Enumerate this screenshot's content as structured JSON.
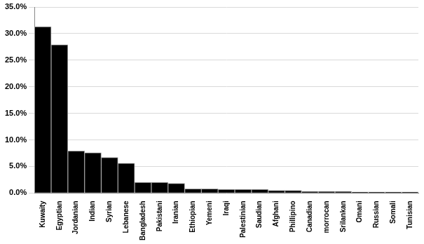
{
  "chart_data": {
    "type": "bar",
    "categories": [
      "Kuwaity",
      "Egyptian",
      "Jordanian",
      "Indian",
      "Syrian",
      "Lebanese",
      "Bangladesh",
      "Pakistani",
      "Iranian",
      "Ethiopian",
      "Yemeni",
      "Iraqi",
      "Palestinian",
      "Saudian",
      "Afghani",
      "Phillipino",
      "Canadian",
      "morrocan",
      "Srilankan",
      "Omani",
      "Russian",
      "Somali",
      "Tunisian"
    ],
    "values": [
      31.3,
      27.9,
      7.9,
      7.6,
      6.7,
      5.6,
      2.0,
      2.0,
      1.8,
      0.8,
      0.8,
      0.7,
      0.7,
      0.7,
      0.5,
      0.5,
      0.3,
      0.3,
      0.3,
      0.2,
      0.2,
      0.2,
      0.2
    ],
    "color": "#000000",
    "ylim": [
      0,
      35
    ],
    "yticks": [
      {
        "value": 0,
        "label": "0.0%"
      },
      {
        "value": 5,
        "label": "5.0%"
      },
      {
        "value": 10,
        "label": "10.0%"
      },
      {
        "value": 15,
        "label": "15.0%"
      },
      {
        "value": 20,
        "label": "20.0%"
      },
      {
        "value": 25,
        "label": "25.0%"
      },
      {
        "value": 30,
        "label": "30.0%"
      },
      {
        "value": 35,
        "label": "35.0%"
      }
    ],
    "grid": true
  }
}
